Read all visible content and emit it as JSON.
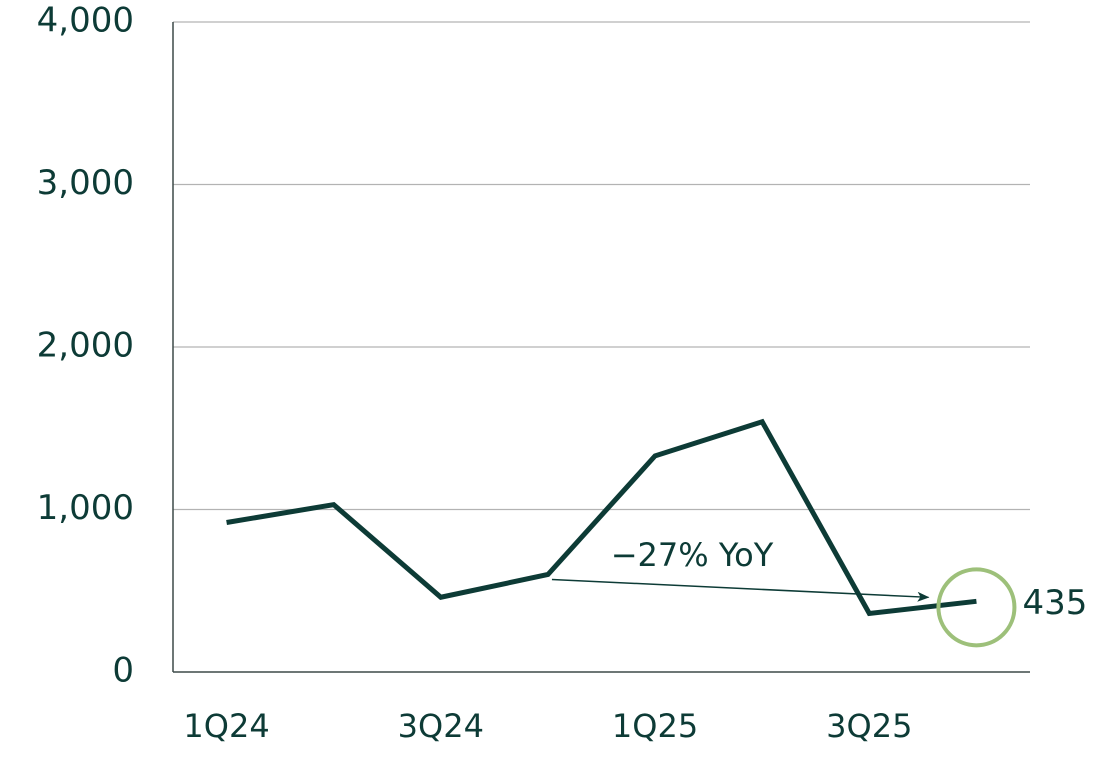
{
  "chart_data": {
    "type": "line",
    "categories": [
      "1Q24",
      null,
      "3Q24",
      null,
      "1Q25",
      null,
      "3Q25",
      null
    ],
    "values": [
      920,
      1030,
      460,
      600,
      1330,
      1540,
      360,
      435
    ],
    "color": "#0d3b36",
    "ylim": [
      0,
      4000
    ],
    "yticks": [
      {
        "value": 0,
        "label": "0"
      },
      {
        "value": 1000,
        "label": "1,000"
      },
      {
        "value": 2000,
        "label": "2,000"
      },
      {
        "value": 3000,
        "label": "3,000"
      },
      {
        "value": 4000,
        "label": "4,000"
      }
    ],
    "grid": true,
    "annotation": "−27% YoY"
  }
}
